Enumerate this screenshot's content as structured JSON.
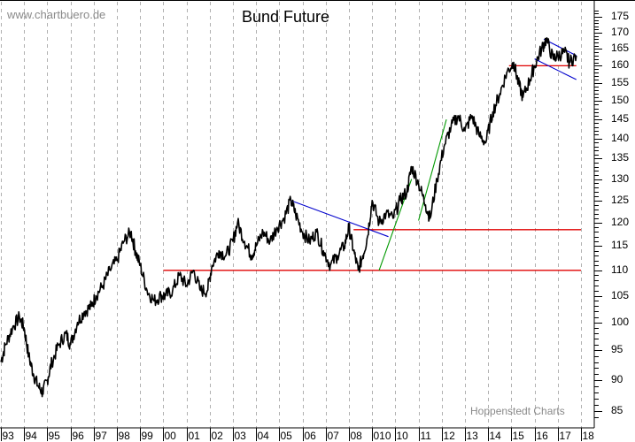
{
  "header": {
    "watermark": "www.chartbuero.de",
    "title": "Bund Future",
    "credit": "Hoppenstedt Charts"
  },
  "colors": {
    "price": "#000000",
    "grid": "#b0b0b0",
    "support_lines": "#e00000",
    "downtrend_lines": "#0000cc",
    "uptrend_lines": "#009900"
  },
  "chart_data": {
    "type": "line",
    "title": "Bund Future",
    "xlabel": "",
    "ylabel": "",
    "y_scale": "log",
    "ylim": [
      83,
      178
    ],
    "y_ticks": [
      85,
      90,
      95,
      100,
      105,
      110,
      115,
      120,
      125,
      130,
      135,
      140,
      145,
      150,
      155,
      160,
      165,
      170,
      175
    ],
    "x_tick_labels": [
      "93",
      "94",
      "95",
      "96",
      "97",
      "98",
      "99",
      "00",
      "01",
      "02",
      "03",
      "04",
      "05",
      "06",
      "07",
      "08",
      "010",
      "10",
      "11",
      "12",
      "13",
      "14",
      "15",
      "16",
      "17",
      "18"
    ],
    "grid": true,
    "legend": null,
    "series": [
      {
        "name": "Bund Future",
        "x": [
          1993.0,
          1993.2,
          1993.5,
          1993.8,
          1994.0,
          1994.2,
          1994.4,
          1994.6,
          1994.8,
          1995.0,
          1995.2,
          1995.5,
          1995.8,
          1996.0,
          1996.3,
          1996.6,
          1996.9,
          1997.1,
          1997.4,
          1997.7,
          1998.0,
          1998.3,
          1998.6,
          1998.8,
          1999.0,
          1999.3,
          1999.6,
          1999.9,
          2000.1,
          2000.4,
          2000.7,
          2001.0,
          2001.3,
          2001.6,
          2001.9,
          2002.1,
          2002.4,
          2002.7,
          2003.0,
          2003.2,
          2003.5,
          2003.8,
          2004.0,
          2004.3,
          2004.6,
          2004.9,
          2005.2,
          2005.5,
          2005.7,
          2006.0,
          2006.3,
          2006.6,
          2006.9,
          2007.2,
          2007.5,
          2007.8,
          2008.0,
          2008.2,
          2008.4,
          2008.6,
          2008.8,
          2009.0,
          2009.3,
          2009.6,
          2009.9,
          2010.2,
          2010.5,
          2010.7,
          2011.0,
          2011.3,
          2011.5,
          2011.8,
          2012.1,
          2012.4,
          2012.7,
          2013.0,
          2013.3,
          2013.6,
          2013.9,
          2014.2,
          2014.5,
          2014.8,
          2015.1,
          2015.3,
          2015.5,
          2015.8,
          2016.0,
          2016.3,
          2016.5,
          2016.8,
          2017.0,
          2017.3,
          2017.5,
          2017.8
        ],
        "values": [
          93,
          96,
          99,
          101,
          99,
          94,
          91,
          89,
          88,
          90,
          93,
          96,
          98,
          96,
          100,
          102,
          103,
          105,
          107,
          110,
          112,
          116,
          118,
          114,
          111,
          106,
          104,
          105,
          105,
          106,
          109,
          107,
          110,
          106,
          106,
          111,
          114,
          113,
          116,
          120,
          116,
          113,
          115,
          118,
          116,
          119,
          121,
          125,
          122,
          118,
          116,
          118,
          114,
          111,
          113,
          115,
          119,
          114,
          110,
          113,
          117,
          125,
          120,
          122,
          121,
          125,
          127,
          133,
          129,
          124,
          121,
          130,
          138,
          143,
          146,
          142,
          146,
          141,
          139,
          147,
          152,
          158,
          161,
          155,
          151,
          156,
          160,
          165,
          168,
          162,
          163,
          164,
          161,
          163
        ]
      }
    ],
    "annotations": [
      {
        "type": "hline",
        "color": "red",
        "value": 110,
        "x_start": 2000.0,
        "x_end": 2018.0
      },
      {
        "type": "hline",
        "color": "red",
        "value": 118.5,
        "x_start": 2008.2,
        "x_end": 2018.0
      },
      {
        "type": "hline",
        "color": "red",
        "value": 160,
        "x_start": 2014.9,
        "x_end": 2017.8
      },
      {
        "type": "trendline",
        "color": "blue",
        "from": [
          2005.5,
          125
        ],
        "to": [
          2009.7,
          117
        ]
      },
      {
        "type": "trendline",
        "color": "blue",
        "from": [
          2016.4,
          168
        ],
        "to": [
          2017.8,
          163
        ]
      },
      {
        "type": "trendline",
        "color": "blue",
        "from": [
          2016.0,
          162
        ],
        "to": [
          2017.8,
          156
        ]
      },
      {
        "type": "trendline",
        "color": "green",
        "from": [
          2009.3,
          110
        ],
        "to": [
          2010.7,
          130
        ]
      },
      {
        "type": "trendline",
        "color": "green",
        "from": [
          2011.0,
          120.5
        ],
        "to": [
          2012.2,
          145
        ]
      }
    ]
  }
}
